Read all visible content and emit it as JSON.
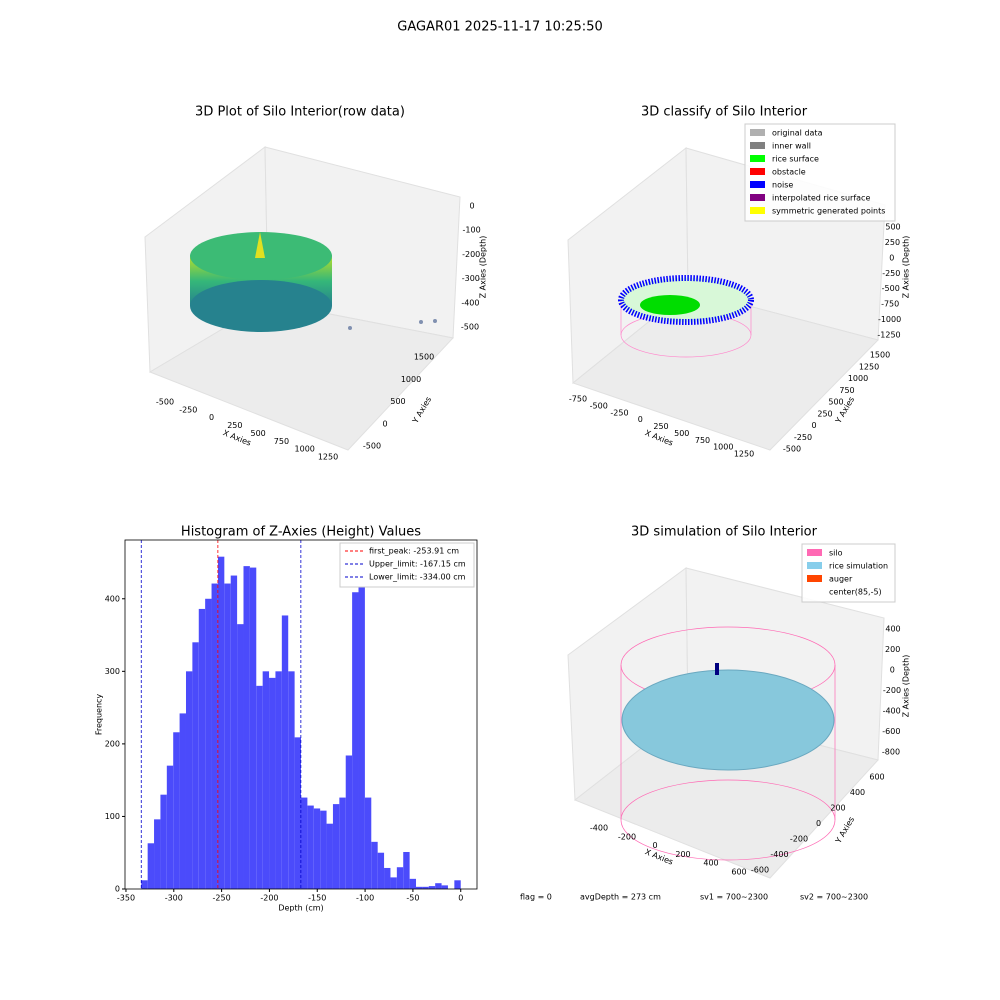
{
  "title": "GAGAR01 2025-11-17 10:25:50",
  "footer": [
    "flag = 0",
    "avgDepth = 273 cm",
    "sv1 = 700~2300",
    "sv2 = 700~2300"
  ],
  "chart_data": [
    {
      "type": "scatter3d",
      "title": "3D Plot of Silo Interior(row data)",
      "xlabel": "X Axies",
      "ylabel": "Y Axies",
      "zlabel": "Z Axies (Depth)",
      "xticks": [
        -500,
        -250,
        0,
        250,
        500,
        750,
        1000,
        1250
      ],
      "yticks": [
        -500,
        0,
        500,
        1000,
        1500
      ],
      "zticks": [
        -500,
        -400,
        -300,
        -200,
        -100,
        0
      ]
    },
    {
      "type": "scatter3d",
      "title": "3D classify of Silo Interior",
      "xlabel": "X Axies",
      "ylabel": "Y Axies",
      "zlabel": "Z Axies (Depth)",
      "xticks": [
        -750,
        -500,
        -250,
        0,
        250,
        500,
        750,
        1000,
        1250
      ],
      "yticks": [
        -500,
        -250,
        0,
        250,
        500,
        750,
        1000,
        1250,
        1500
      ],
      "zticks": [
        -1250,
        -1000,
        -750,
        -500,
        -250,
        0,
        250,
        500
      ],
      "legend": [
        {
          "name": "original data",
          "color": "#b0b0b0"
        },
        {
          "name": "inner wall",
          "color": "#808080"
        },
        {
          "name": "rice surface",
          "color": "#00ff00"
        },
        {
          "name": "obstacle",
          "color": "#ff0000"
        },
        {
          "name": "noise",
          "color": "#0000ff"
        },
        {
          "name": "interpolated rice surface",
          "color": "#800080"
        },
        {
          "name": "symmetric generated points",
          "color": "#ffff00"
        }
      ]
    },
    {
      "type": "histogram",
      "title": "Histogram of Z-Axies (Height) Values",
      "xlabel": "Depth (cm)",
      "ylabel": "Frequency",
      "color": "#4b4bfb",
      "bins": [
        -334,
        -327.32,
        -320.64,
        -313.96,
        -307.28,
        -300.6,
        -293.92,
        -287.24,
        -280.56,
        -273.88,
        -267.2,
        -260.52,
        -253.84,
        -247.16,
        -240.48,
        -233.8,
        -227.12,
        -220.44,
        -213.76,
        -207.08,
        -200.4,
        -193.72,
        -187.04,
        -180.36,
        -173.68,
        -167,
        -160.32,
        -153.64,
        -146.96,
        -140.28,
        -133.6,
        -126.92,
        -120.24,
        -113.56,
        -106.88,
        -100.2,
        -93.52,
        -86.84,
        -80.16,
        -73.48,
        -66.8,
        -60.12,
        -53.44,
        -46.76,
        -40.08,
        -33.4,
        -26.72,
        -20.04,
        -13.36,
        -6.68,
        0
      ],
      "counts": [
        12,
        63,
        96,
        130,
        170,
        216,
        242,
        300,
        340,
        386,
        400,
        421,
        458,
        421,
        432,
        365,
        445,
        443,
        280,
        300,
        291,
        300,
        377,
        300,
        209,
        126,
        115,
        111,
        108,
        90,
        117,
        126,
        184,
        409,
        425,
        126,
        65,
        50,
        29,
        16,
        30,
        51,
        14,
        3,
        3,
        4,
        8,
        5,
        0,
        12
      ],
      "xlim": [
        -351,
        17
      ],
      "ylim": [
        0,
        481
      ],
      "xticks": [
        -350,
        -300,
        -250,
        -200,
        -150,
        -100,
        -50,
        0
      ],
      "yticks": [
        0,
        100,
        200,
        300,
        400
      ],
      "lines": [
        {
          "name": "first_peak: -253.91 cm",
          "value": -253.91,
          "color": "#ff0000"
        },
        {
          "name": "Upper_limit: -167.15 cm",
          "value": -167.15,
          "color": "#0000cc"
        },
        {
          "name": "Lower_limit: -334.00 cm",
          "value": -334.0,
          "color": "#0000cc"
        }
      ]
    },
    {
      "type": "scatter3d",
      "title": "3D simulation of Silo Interior",
      "xlabel": "X Axies",
      "ylabel": "Y Axies",
      "zlabel": "Z Axies (Depth)",
      "xticks": [
        -400,
        -200,
        0,
        200,
        400,
        600
      ],
      "yticks": [
        -600,
        -400,
        -200,
        0,
        200,
        400,
        600
      ],
      "zticks": [
        -800,
        -600,
        -400,
        -200,
        0,
        200,
        400
      ],
      "legend": [
        {
          "name": "silo",
          "color": "#ff69b4"
        },
        {
          "name": "rice simulation",
          "color": "#87ceeb"
        },
        {
          "name": "auger",
          "color": "#ff4500"
        },
        {
          "name": "center(85,-5)",
          "color": "#ffffff"
        }
      ]
    }
  ]
}
